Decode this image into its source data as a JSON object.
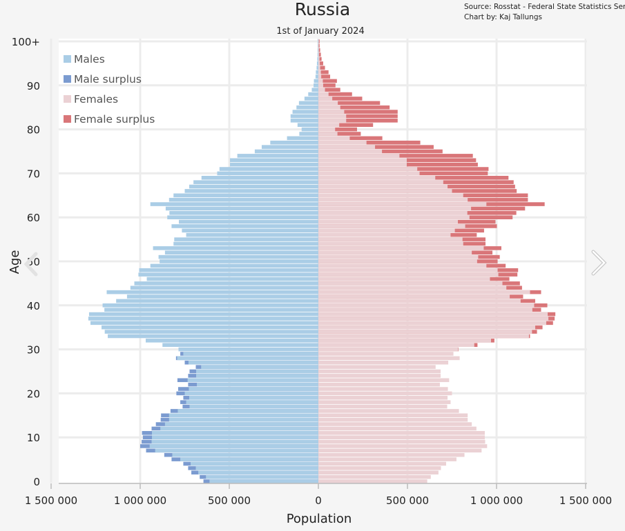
{
  "chart_data": {
    "type": "bar",
    "orientation": "horizontal-pyramid",
    "title": "Russia",
    "subtitle": "1st of January 2024",
    "source": "Source: Rosstat - Federal State Statistics Service",
    "credit": "Chart by: Kaj Tallungs",
    "xlabel": "Population",
    "ylabel": "Age",
    "xlim": [
      -1500000,
      1500000
    ],
    "ylim": [
      0,
      100
    ],
    "x_ticks": [
      -1500000,
      -1000000,
      -500000,
      0,
      500000,
      1000000,
      1500000
    ],
    "x_tick_labels": [
      "1 500 000",
      "1 000 000",
      "500 000",
      "0",
      "500 000",
      "1 000 000",
      "1 500 000"
    ],
    "y_ticks": [
      0,
      10,
      20,
      30,
      40,
      50,
      60,
      70,
      80,
      90,
      100
    ],
    "y_tick_labels": [
      "0",
      "10",
      "20",
      "30",
      "40",
      "50",
      "60",
      "70",
      "80",
      "90",
      "100+"
    ],
    "grid": true,
    "legend_placement": "top-left",
    "legend": [
      "Males",
      "Male surplus",
      "Females",
      "Female surplus"
    ],
    "colors": {
      "males": "#aacde6",
      "male_surplus": "#7b9bd0",
      "females": "#ebd1d4",
      "female_surplus": "#d97679"
    },
    "ages": [
      0,
      1,
      2,
      3,
      4,
      5,
      6,
      7,
      8,
      9,
      10,
      11,
      12,
      13,
      14,
      15,
      16,
      17,
      18,
      19,
      20,
      21,
      22,
      23,
      24,
      25,
      26,
      27,
      28,
      29,
      30,
      31,
      32,
      33,
      34,
      35,
      36,
      37,
      38,
      39,
      40,
      41,
      42,
      43,
      44,
      45,
      46,
      47,
      48,
      49,
      50,
      51,
      52,
      53,
      54,
      55,
      56,
      57,
      58,
      59,
      60,
      61,
      62,
      63,
      64,
      65,
      66,
      67,
      68,
      69,
      70,
      71,
      72,
      73,
      74,
      75,
      76,
      77,
      78,
      79,
      80,
      81,
      82,
      83,
      84,
      85,
      86,
      87,
      88,
      89,
      90,
      91,
      92,
      93,
      94,
      95,
      96,
      97,
      98,
      99,
      "100+"
    ],
    "males": [
      645000,
      666000,
      713000,
      731000,
      758000,
      824000,
      865000,
      967000,
      1000000,
      992000,
      985000,
      990000,
      936000,
      912000,
      885000,
      883000,
      830000,
      762000,
      775000,
      758000,
      797000,
      787000,
      731000,
      791000,
      731000,
      723000,
      688000,
      750000,
      799000,
      775000,
      785000,
      875000,
      969000,
      1182000,
      1199000,
      1217000,
      1279000,
      1291000,
      1287000,
      1201000,
      1211000,
      1135000,
      1074000,
      1188000,
      1055000,
      1033000,
      963000,
      1010000,
      1006000,
      943000,
      891000,
      897000,
      861000,
      928000,
      813000,
      809000,
      742000,
      766000,
      824000,
      783000,
      848000,
      836000,
      857000,
      943000,
      838000,
      813000,
      750000,
      725000,
      701000,
      656000,
      568000,
      555000,
      496000,
      496000,
      455000,
      357000,
      318000,
      270000,
      176000,
      107000,
      94000,
      117000,
      156000,
      156000,
      145000,
      123000,
      109000,
      78000,
      57000,
      37000,
      27000,
      25000,
      16000,
      14000,
      10000,
      8000,
      6000,
      4000,
      3000,
      2000,
      3000
    ],
    "females": [
      611000,
      631000,
      674000,
      688000,
      717000,
      775000,
      820000,
      916000,
      947000,
      936000,
      934000,
      934000,
      887000,
      861000,
      838000,
      838000,
      789000,
      723000,
      742000,
      725000,
      750000,
      727000,
      682000,
      734000,
      686000,
      686000,
      658000,
      729000,
      793000,
      758000,
      787000,
      893000,
      988000,
      1188000,
      1227000,
      1258000,
      1317000,
      1326000,
      1330000,
      1250000,
      1285000,
      1217000,
      1149000,
      1250000,
      1143000,
      1131000,
      1072000,
      1117000,
      1121000,
      1051000,
      1006000,
      1018000,
      977000,
      1027000,
      938000,
      938000,
      889000,
      930000,
      1002000,
      994000,
      1090000,
      1111000,
      1160000,
      1270000,
      1176000,
      1176000,
      1113000,
      1104000,
      1096000,
      1067000,
      951000,
      955000,
      895000,
      885000,
      867000,
      697000,
      647000,
      572000,
      359000,
      238000,
      217000,
      307000,
      445000,
      445000,
      445000,
      400000,
      346000,
      246000,
      189000,
      123000,
      96000,
      104000,
      66000,
      57000,
      37000,
      27000,
      18000,
      14000,
      10000,
      7000,
      7000
    ]
  },
  "navigation": {
    "prev_icon": "chevron-left-icon",
    "next_icon": "chevron-right-icon"
  }
}
